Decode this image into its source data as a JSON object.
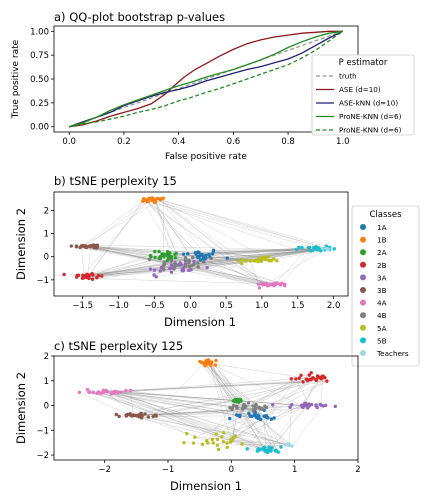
{
  "chart_data": [
    {
      "type": "line",
      "title": "a) QQ-plot bootstrap p-values",
      "xlabel": "False positive rate",
      "ylabel": "True positive rate",
      "xlim": [
        0.0,
        1.0
      ],
      "ylim": [
        0.0,
        1.0
      ],
      "xticks": [
        "0.0",
        "0.2",
        "0.4",
        "0.6",
        "0.8",
        "1.0"
      ],
      "yticks": [
        "0.00",
        "0.25",
        "0.50",
        "0.75",
        "1.00"
      ],
      "legend_title": "P estimator",
      "legend_position": "right",
      "series": [
        {
          "name": "truth",
          "color": "#999999",
          "dash": "dashed",
          "x": [
            0,
            1
          ],
          "y": [
            0,
            1
          ]
        },
        {
          "name": "ASE (d=10)",
          "color": "#8b1a1a",
          "dash": "solid",
          "x": [
            0,
            0.05,
            0.1,
            0.15,
            0.2,
            0.25,
            0.3,
            0.35,
            0.38,
            0.42,
            0.46,
            0.5,
            0.55,
            0.6,
            0.65,
            0.7,
            0.75,
            0.8,
            0.85,
            0.9,
            0.95,
            1.0
          ],
          "y": [
            0,
            0.02,
            0.06,
            0.11,
            0.15,
            0.19,
            0.24,
            0.34,
            0.42,
            0.52,
            0.6,
            0.66,
            0.74,
            0.81,
            0.87,
            0.91,
            0.94,
            0.96,
            0.98,
            0.99,
            1.0,
            1.0
          ]
        },
        {
          "name": "ASE-kNN (d=10)",
          "color": "#1f1f7a",
          "dash": "solid",
          "x": [
            0,
            0.05,
            0.1,
            0.15,
            0.2,
            0.25,
            0.3,
            0.35,
            0.4,
            0.45,
            0.5,
            0.55,
            0.6,
            0.65,
            0.7,
            0.75,
            0.8,
            0.85,
            0.9,
            0.95,
            1.0
          ],
          "y": [
            0,
            0.05,
            0.1,
            0.15,
            0.22,
            0.27,
            0.32,
            0.36,
            0.39,
            0.43,
            0.48,
            0.52,
            0.56,
            0.6,
            0.63,
            0.67,
            0.71,
            0.77,
            0.85,
            0.93,
            1.0
          ]
        },
        {
          "name": "ProNE-KNN (d=6)",
          "color": "#228b22",
          "dash": "solid",
          "x": [
            0,
            0.05,
            0.1,
            0.15,
            0.2,
            0.25,
            0.3,
            0.35,
            0.4,
            0.45,
            0.5,
            0.55,
            0.6,
            0.65,
            0.7,
            0.75,
            0.8,
            0.85,
            0.9,
            0.95,
            1.0
          ],
          "y": [
            0,
            0.04,
            0.1,
            0.17,
            0.23,
            0.28,
            0.33,
            0.38,
            0.43,
            0.47,
            0.52,
            0.56,
            0.6,
            0.65,
            0.7,
            0.76,
            0.83,
            0.89,
            0.94,
            0.98,
            1.0
          ]
        },
        {
          "name": "ProNE-KNN (d=6)",
          "color": "#228b22",
          "dash": "dashed",
          "x": [
            0,
            0.05,
            0.1,
            0.15,
            0.2,
            0.25,
            0.3,
            0.35,
            0.4,
            0.45,
            0.5,
            0.55,
            0.6,
            0.65,
            0.7,
            0.75,
            0.8,
            0.85,
            0.9,
            0.95,
            1.0
          ],
          "y": [
            0,
            0.03,
            0.05,
            0.08,
            0.11,
            0.15,
            0.18,
            0.22,
            0.27,
            0.31,
            0.36,
            0.4,
            0.45,
            0.5,
            0.55,
            0.6,
            0.65,
            0.72,
            0.8,
            0.9,
            1.0
          ]
        }
      ]
    },
    {
      "type": "scatter",
      "title": "b) tSNE perplexity 15",
      "xlabel": "Dimension 1",
      "ylabel": "Dimension 2",
      "xlim": [
        -1.9,
        2.2
      ],
      "ylim": [
        -1.7,
        2.8
      ],
      "xticks": [
        "−1.5",
        "−1.0",
        "−0.5",
        "0.0",
        "0.5",
        "1.0",
        "1.5",
        "2.0"
      ],
      "yticks": [
        "−1",
        "0",
        "1",
        "2"
      ],
      "legend_title": "Classes",
      "legend_position": "right",
      "clusters": [
        {
          "name": "1A",
          "cx": 0.15,
          "cy": 0.05,
          "sx": 0.22,
          "sy": 0.25
        },
        {
          "name": "1B",
          "cx": -0.52,
          "cy": 2.45,
          "sx": 0.16,
          "sy": 0.09
        },
        {
          "name": "2A",
          "cx": -0.35,
          "cy": 0.05,
          "sx": 0.18,
          "sy": 0.22
        },
        {
          "name": "2B",
          "cx": -1.45,
          "cy": -0.85,
          "sx": 0.2,
          "sy": 0.12
        },
        {
          "name": "3A",
          "cx": -0.25,
          "cy": -0.5,
          "sx": 0.35,
          "sy": 0.35
        },
        {
          "name": "3B",
          "cx": -1.4,
          "cy": 0.45,
          "sx": 0.2,
          "sy": 0.07
        },
        {
          "name": "4A",
          "cx": 1.15,
          "cy": -1.2,
          "sx": 0.2,
          "sy": 0.06
        },
        {
          "name": "4B",
          "cx": -0.05,
          "cy": -0.3,
          "sx": 0.35,
          "sy": 0.3
        },
        {
          "name": "5A",
          "cx": 0.95,
          "cy": -0.15,
          "sx": 0.25,
          "sy": 0.1
        },
        {
          "name": "5B",
          "cx": 1.75,
          "cy": 0.35,
          "sx": 0.18,
          "sy": 0.08
        },
        {
          "name": "Teachers",
          "cx": 1.9,
          "cy": 0.35,
          "sx": 0.05,
          "sy": 0.04
        }
      ]
    },
    {
      "type": "scatter",
      "title": "c) tSNE perplexity 125",
      "xlabel": "Dimension 1",
      "ylabel": "Dimension 2",
      "xlim": [
        -2.8,
        2.0
      ],
      "ylim": [
        -2.2,
        2.0
      ],
      "xticks": [
        "−2",
        "−1",
        "0",
        "1",
        "2"
      ],
      "yticks": [
        "−2",
        "−1",
        "0",
        "1",
        "2"
      ],
      "clusters": [
        {
          "name": "1A",
          "cx": 0.4,
          "cy": -0.4,
          "sx": 0.35,
          "sy": 0.18
        },
        {
          "name": "1B",
          "cx": -0.4,
          "cy": 1.7,
          "sx": 0.12,
          "sy": 0.1
        },
        {
          "name": "2A",
          "cx": 0.1,
          "cy": 0.2,
          "sx": 0.05,
          "sy": 0.05
        },
        {
          "name": "2B",
          "cx": 1.3,
          "cy": 1.1,
          "sx": 0.25,
          "sy": 0.12
        },
        {
          "name": "3A",
          "cx": 1.2,
          "cy": 0.0,
          "sx": 0.4,
          "sy": 0.08
        },
        {
          "name": "3B",
          "cx": -1.5,
          "cy": -0.4,
          "sx": 0.35,
          "sy": 0.07
        },
        {
          "name": "4A",
          "cx": -2.0,
          "cy": 0.55,
          "sx": 0.35,
          "sy": 0.05
        },
        {
          "name": "4B",
          "cx": 0.3,
          "cy": -0.1,
          "sx": 0.35,
          "sy": 0.15
        },
        {
          "name": "5A",
          "cx": -0.2,
          "cy": -1.4,
          "sx": 0.4,
          "sy": 0.25
        },
        {
          "name": "5B",
          "cx": 0.55,
          "cy": -1.8,
          "sx": 0.3,
          "sy": 0.1
        },
        {
          "name": "Teachers",
          "cx": 0.9,
          "cy": -1.6,
          "sx": 0.05,
          "sy": 0.05
        }
      ]
    }
  ],
  "class_colors": {
    "1A": "#1f77b4",
    "1B": "#ff7f0e",
    "2A": "#2ca02c",
    "2B": "#d62728",
    "3A": "#9467bd",
    "3B": "#8c564b",
    "4A": "#e377c2",
    "4B": "#7f7f7f",
    "5A": "#bcbd22",
    "5B": "#17becf",
    "Teachers": "#9edae5"
  }
}
